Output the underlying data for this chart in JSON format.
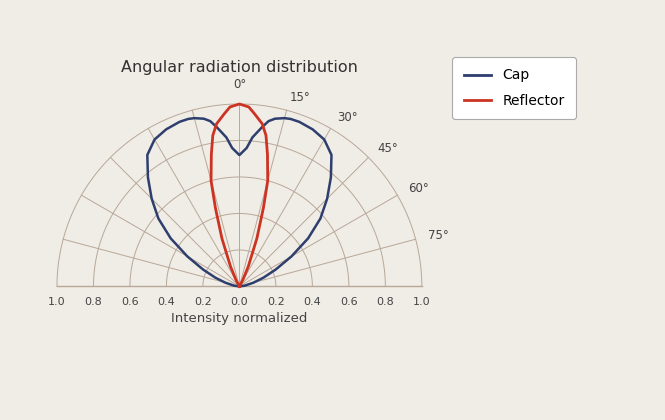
{
  "title": "Angular radiation distribution",
  "xlabel": "Intensity normalized",
  "cap_color": "#2e3f6e",
  "reflector_color": "#cc3322",
  "background_color": "#f0ece6",
  "grid_color": "#b8a898",
  "legend_labels": [
    "Cap",
    "Reflector"
  ],
  "radial_ticks": [
    0.2,
    0.4,
    0.6,
    0.8,
    1.0
  ],
  "x_ticks": [
    1.0,
    0.8,
    0.6,
    0.4,
    0.2,
    0.0,
    0.2,
    0.4,
    0.6,
    0.8,
    1.0
  ],
  "x_tick_vals": [
    -1.0,
    -0.8,
    -0.6,
    -0.4,
    -0.2,
    0.0,
    0.2,
    0.4,
    0.6,
    0.8,
    1.0
  ],
  "cap_angles_deg": [
    -90,
    -82,
    -75,
    -70,
    -65,
    -60,
    -55,
    -50,
    -45,
    -40,
    -35,
    -30,
    -25,
    -20,
    -17,
    -15,
    -12,
    -10,
    -8,
    -5,
    -3,
    0,
    3,
    5,
    8,
    10,
    12,
    15,
    17,
    20,
    25,
    30,
    35,
    40,
    45,
    50,
    55,
    60,
    65,
    70,
    75,
    82,
    90
  ],
  "cap_r": [
    0.0,
    0.03,
    0.08,
    0.14,
    0.22,
    0.33,
    0.46,
    0.58,
    0.68,
    0.78,
    0.88,
    0.93,
    0.95,
    0.96,
    0.96,
    0.955,
    0.94,
    0.92,
    0.88,
    0.82,
    0.76,
    0.72,
    0.76,
    0.82,
    0.88,
    0.92,
    0.94,
    0.955,
    0.96,
    0.96,
    0.95,
    0.93,
    0.88,
    0.78,
    0.68,
    0.58,
    0.46,
    0.33,
    0.22,
    0.14,
    0.08,
    0.03,
    0.0
  ],
  "reflector_angles_deg": [
    -32,
    -28,
    -24,
    -20,
    -17,
    -15,
    -12,
    -10,
    -8,
    -5,
    -3,
    0,
    3,
    5,
    8,
    10,
    12,
    15,
    17,
    20,
    24,
    28,
    32
  ],
  "reflector_r": [
    0.0,
    0.04,
    0.12,
    0.28,
    0.45,
    0.6,
    0.74,
    0.84,
    0.9,
    0.95,
    0.985,
    1.0,
    0.985,
    0.95,
    0.9,
    0.84,
    0.74,
    0.6,
    0.45,
    0.28,
    0.12,
    0.04,
    0.0
  ],
  "figsize": [
    6.65,
    4.2
  ],
  "dpi": 100
}
